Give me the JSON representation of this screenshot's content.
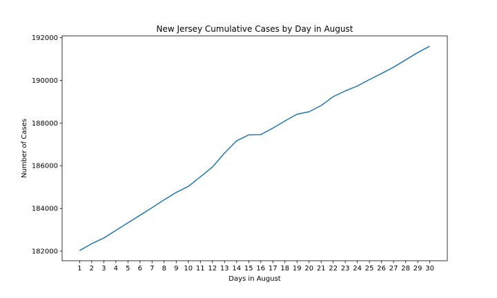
{
  "chart_data": {
    "type": "line",
    "title": "New Jersey Cumulative Cases by Day in August",
    "xlabel": "Days in August",
    "ylabel": "Number of Cases",
    "x": [
      1,
      2,
      3,
      4,
      5,
      6,
      7,
      8,
      9,
      10,
      11,
      12,
      13,
      14,
      15,
      16,
      17,
      18,
      19,
      20,
      21,
      22,
      23,
      24,
      25,
      26,
      27,
      28,
      29,
      30
    ],
    "series": [
      {
        "values": [
          182029,
          182350,
          182614,
          182970,
          183327,
          183680,
          184038,
          184404,
          184750,
          185031,
          185480,
          185938,
          186594,
          187165,
          187443,
          187455,
          187761,
          188094,
          188411,
          188527,
          188817,
          189236,
          189500,
          189733,
          190033,
          190319,
          190612,
          190956,
          191299,
          191598
        ],
        "color": "#1f77b4"
      }
    ],
    "xticks": [
      "1",
      "2",
      "3",
      "4",
      "5",
      "6",
      "7",
      "8",
      "9",
      "10",
      "11",
      "12",
      "13",
      "14",
      "15",
      "16",
      "17",
      "18",
      "19",
      "20",
      "21",
      "22",
      "23",
      "24",
      "25",
      "26",
      "27",
      "28",
      "29",
      "30"
    ],
    "yticks": [
      182000,
      184000,
      186000,
      188000,
      190000,
      192000
    ],
    "ytick_labels": [
      "182000",
      "184000",
      "186000",
      "188000",
      "190000",
      "192000"
    ],
    "xlim": [
      -0.45,
      31.45
    ],
    "ylim": [
      181550,
      192080
    ],
    "grid": false,
    "legend": "none"
  }
}
